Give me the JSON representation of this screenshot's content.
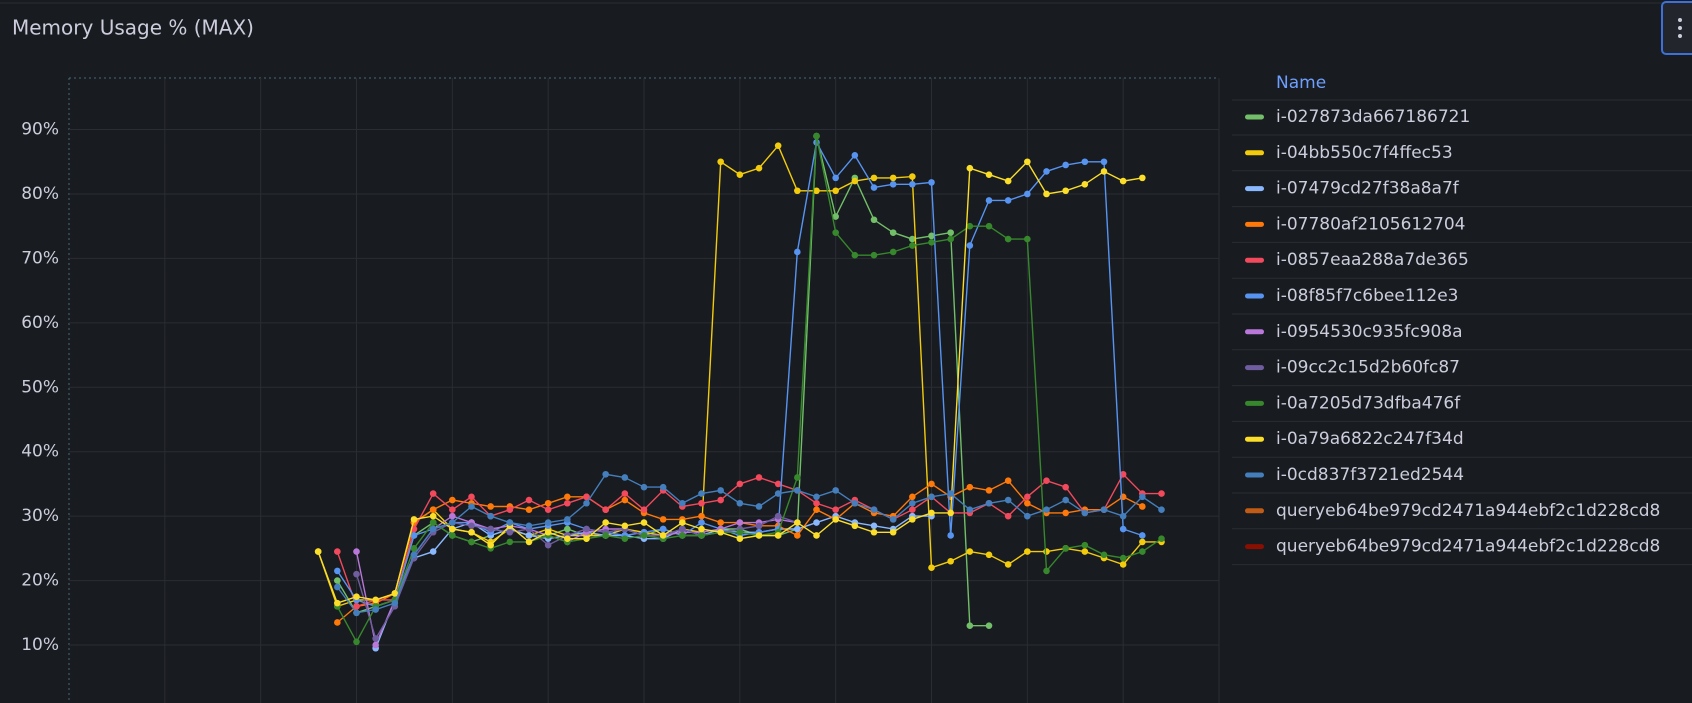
{
  "chart_data": {
    "type": "line",
    "title": "Memory Usage % (MAX)",
    "legend_header": "Name",
    "legend": "right",
    "grid": true,
    "ylim": [
      1,
      98
    ],
    "yticks": [
      {
        "value": 10,
        "label": "10%"
      },
      {
        "value": 20,
        "label": "20%"
      },
      {
        "value": 30,
        "label": "30%"
      },
      {
        "value": 40,
        "label": "40%"
      },
      {
        "value": 50,
        "label": "50%"
      },
      {
        "value": 60,
        "label": "60%"
      },
      {
        "value": 70,
        "label": "70%"
      },
      {
        "value": 80,
        "label": "80%"
      },
      {
        "value": 90,
        "label": "90%"
      }
    ],
    "categories": [
      null,
      null,
      null,
      null,
      null,
      null,
      null,
      null,
      null,
      null,
      null,
      null,
      null,
      null,
      null,
      null,
      null,
      null,
      null,
      null,
      null,
      null,
      null,
      null,
      null,
      null,
      null,
      null,
      null,
      null,
      null,
      null,
      null,
      null,
      null,
      null,
      null,
      null,
      null,
      null,
      null,
      null,
      null,
      null,
      null,
      null,
      null,
      null,
      null,
      null,
      null,
      null,
      null,
      null,
      null,
      null,
      null,
      null,
      null,
      null,
      null
    ],
    "series": [
      {
        "name": "i-027873da667186721",
        "color": "#73bf69",
        "values": [
          null,
          null,
          null,
          null,
          null,
          null,
          null,
          null,
          null,
          null,
          null,
          null,
          null,
          null,
          20,
          15,
          16,
          17,
          27,
          29,
          27,
          26,
          27,
          28,
          27,
          27,
          28,
          27,
          27,
          28,
          27,
          28,
          27,
          27,
          28,
          28,
          27,
          27,
          28,
          89,
          76.5,
          82.5,
          76,
          74,
          73,
          73.5,
          74,
          13,
          13,
          null,
          null,
          null,
          null,
          null,
          null,
          null,
          null,
          null,
          null,
          null,
          null
        ]
      },
      {
        "name": "i-04bb550c7f4ffec53",
        "color": "#f2cc0c",
        "values": [
          null,
          null,
          null,
          null,
          null,
          null,
          null,
          null,
          null,
          null,
          null,
          null,
          null,
          24.5,
          16,
          17,
          17,
          18,
          29,
          31,
          28,
          27.5,
          26,
          28,
          27,
          28,
          27,
          27,
          27,
          28,
          27.5,
          27,
          28,
          27.5,
          85,
          83,
          84,
          87.5,
          80.5,
          80.5,
          80.5,
          82,
          82.5,
          82.5,
          82.7,
          22,
          23,
          24.5,
          24,
          22.5,
          24.5,
          24.5,
          25,
          24.5,
          23.5,
          22.5,
          26,
          26,
          null,
          null,
          null
        ]
      },
      {
        "name": "i-07479cd27f38a8a7f",
        "color": "#8ab8ff",
        "values": [
          null,
          null,
          null,
          null,
          null,
          null,
          null,
          null,
          null,
          null,
          null,
          null,
          null,
          null,
          null,
          null,
          9.5,
          17,
          23.5,
          24.5,
          28,
          29,
          27,
          28,
          27,
          26.5,
          27,
          27.5,
          27,
          27,
          26.5,
          26.5,
          28,
          27,
          28,
          27.5,
          27.5,
          28,
          28,
          29,
          30,
          29,
          28.5,
          28,
          30,
          30,
          null,
          null,
          null,
          null,
          null,
          null,
          null,
          null,
          null,
          null,
          null,
          null,
          null,
          null,
          null
        ]
      },
      {
        "name": "i-07780af2105612704",
        "color": "#ff780a",
        "values": [
          null,
          null,
          null,
          null,
          null,
          null,
          null,
          null,
          null,
          null,
          null,
          null,
          null,
          null,
          13.5,
          16,
          16.5,
          18,
          29,
          31,
          32.5,
          32,
          31.5,
          31.5,
          31,
          32,
          33,
          33,
          31,
          32.5,
          30.5,
          29.5,
          29.5,
          30,
          29,
          29,
          28.5,
          28.5,
          27,
          31,
          29.5,
          32,
          30.5,
          30,
          33,
          35,
          33,
          34.5,
          34,
          35.5,
          32,
          30.5,
          30.5,
          31,
          31,
          33,
          31.5,
          null,
          null,
          null,
          null
        ]
      },
      {
        "name": "i-0857eaa288a7de365",
        "color": "#f2495c",
        "values": [
          null,
          null,
          null,
          null,
          null,
          null,
          null,
          null,
          null,
          null,
          null,
          null,
          null,
          null,
          24.5,
          16,
          17,
          17,
          28,
          33.5,
          31,
          33,
          30,
          31,
          32.5,
          31,
          32,
          33,
          31,
          33.5,
          31,
          34,
          31.5,
          32,
          32.5,
          35,
          36,
          35,
          34,
          32,
          31,
          32.5,
          31,
          29.5,
          31,
          33,
          30.5,
          30.5,
          32,
          30,
          33,
          35.5,
          34.5,
          30.5,
          31,
          36.5,
          33.5,
          33.5,
          null,
          null,
          null
        ]
      },
      {
        "name": "i-08f85f7c6bee112e3",
        "color": "#5794f2",
        "values": [
          null,
          null,
          null,
          null,
          null,
          null,
          null,
          null,
          null,
          null,
          null,
          null,
          null,
          null,
          21.5,
          17,
          16,
          17,
          27,
          28,
          29,
          29,
          27.5,
          29,
          28,
          28.5,
          29,
          28,
          27.5,
          27,
          27.5,
          28,
          27,
          29,
          28,
          27,
          27.5,
          28,
          71,
          88,
          82.5,
          86,
          81,
          81.5,
          81.5,
          81.8,
          27,
          72,
          79,
          79,
          80,
          83.5,
          84.5,
          85,
          85,
          28,
          27,
          null,
          null,
          null,
          null
        ]
      },
      {
        "name": "i-0954530c935fc908a",
        "color": "#b877d9",
        "values": [
          null,
          null,
          null,
          null,
          null,
          null,
          null,
          null,
          null,
          null,
          null,
          null,
          null,
          null,
          null,
          24.5,
          10,
          17,
          24,
          28,
          30,
          29,
          28,
          28.5,
          28,
          27,
          26,
          27.5,
          28,
          28,
          27,
          27,
          27.5,
          27.5,
          28,
          29,
          29,
          29.5,
          29,
          null,
          null,
          null,
          null,
          null,
          null,
          null,
          null,
          null,
          null,
          null,
          null,
          null,
          null,
          null,
          null,
          null,
          null,
          null,
          null,
          null,
          null
        ]
      },
      {
        "name": "i-09cc2c15d2b60fc87",
        "color": "#705da0",
        "values": [
          null,
          null,
          null,
          null,
          null,
          null,
          null,
          null,
          null,
          null,
          null,
          null,
          null,
          null,
          null,
          21,
          11,
          16,
          23.5,
          27.5,
          29,
          28.5,
          28,
          27.5,
          28,
          25.5,
          27,
          28,
          27.5,
          28,
          27,
          27,
          28,
          27,
          27.5,
          28,
          28.5,
          30,
          29,
          null,
          null,
          null,
          null,
          null,
          null,
          null,
          null,
          null,
          null,
          null,
          null,
          null,
          null,
          null,
          null,
          null,
          null,
          null,
          null,
          null,
          null
        ]
      },
      {
        "name": "i-0a7205d73dfba476f",
        "color": "#37872d",
        "values": [
          null,
          null,
          null,
          null,
          null,
          null,
          null,
          null,
          null,
          null,
          null,
          null,
          null,
          null,
          16,
          10.5,
          16,
          17,
          25,
          29,
          27,
          26,
          25,
          26,
          26,
          27,
          26,
          26.5,
          27,
          26.5,
          27,
          26.5,
          27,
          27,
          27.5,
          27.5,
          27,
          27.5,
          36,
          89,
          74,
          70.5,
          70.5,
          71,
          72,
          72.5,
          73,
          75,
          75,
          73,
          73,
          21.5,
          25,
          25.5,
          24,
          23.5,
          24.5,
          26.5,
          null,
          null,
          null
        ]
      },
      {
        "name": "i-0a79a6822c247f34d",
        "color": "#fade2a",
        "values": [
          null,
          null,
          null,
          null,
          null,
          null,
          null,
          null,
          null,
          null,
          null,
          null,
          null,
          24.5,
          16.5,
          17.5,
          17,
          18,
          29.5,
          30,
          28,
          27.5,
          25.5,
          28.5,
          26,
          27.5,
          26.5,
          26.5,
          29,
          28.5,
          29,
          27,
          29,
          28,
          27.5,
          26.5,
          27,
          27,
          29,
          27,
          29.5,
          28.5,
          27.5,
          27.5,
          29.5,
          30.5,
          30.5,
          84,
          83,
          82,
          85,
          80,
          80.5,
          81.5,
          83.5,
          82,
          82.5,
          null,
          null,
          null,
          null
        ]
      },
      {
        "name": "i-0cd837f3721ed2544",
        "color": "#447ebc",
        "values": [
          null,
          null,
          null,
          null,
          null,
          null,
          null,
          null,
          null,
          null,
          null,
          null,
          null,
          null,
          19,
          15,
          15.5,
          16.5,
          24,
          28,
          29,
          31.5,
          30,
          29,
          28.5,
          29,
          29.5,
          32,
          36.5,
          36,
          34.5,
          34.5,
          32,
          33.5,
          34,
          32,
          31.5,
          33.5,
          34,
          33,
          34,
          32,
          31,
          29.5,
          32,
          33,
          33.5,
          31,
          32,
          32.5,
          30,
          31,
          32.5,
          30.5,
          31,
          30,
          33,
          31,
          null,
          null,
          null
        ]
      },
      {
        "name": "queryeb64be979cd2471a944ebf2c1d228cd8",
        "color": "#c15c17",
        "values": [
          null,
          null,
          null,
          null,
          null,
          null,
          null,
          null,
          null,
          null,
          null,
          null,
          null,
          null,
          null,
          null,
          null,
          null,
          null,
          null,
          null,
          null,
          null,
          null,
          null,
          null,
          null,
          null,
          null,
          null,
          null,
          null,
          null,
          null,
          null,
          null,
          null,
          null,
          null,
          null,
          null,
          null,
          null,
          null,
          null,
          null,
          null,
          null,
          null,
          null,
          null,
          null,
          null,
          null,
          null,
          null,
          null,
          null,
          null,
          null,
          null
        ]
      },
      {
        "name": "queryeb64be979cd2471a944ebf2c1d228cd8",
        "color": "#890f02",
        "values": [
          null,
          null,
          null,
          null,
          null,
          null,
          null,
          null,
          null,
          null,
          null,
          null,
          null,
          null,
          null,
          null,
          null,
          null,
          null,
          null,
          null,
          null,
          null,
          null,
          null,
          null,
          null,
          null,
          null,
          null,
          null,
          null,
          null,
          null,
          null,
          null,
          null,
          null,
          null,
          null,
          null,
          null,
          null,
          null,
          null,
          null,
          null,
          null,
          null,
          null,
          null,
          null,
          null,
          null,
          null,
          null,
          null,
          null,
          null,
          null,
          null
        ]
      }
    ]
  }
}
